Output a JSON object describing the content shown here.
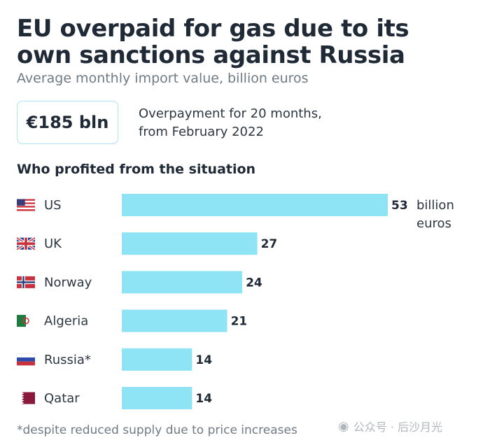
{
  "chart_data": {
    "type": "bar",
    "orientation": "horizontal",
    "title": "EU overpaid for gas due to its own sanctions against Russia",
    "subtitle": "Average monthly import value, billion euros",
    "highlight": {
      "value": "€185 bln",
      "note_line1": "Overpayment for 20 months,",
      "note_line2": "from February 2022"
    },
    "section_heading": "Who profited from the situation",
    "categories": [
      "US",
      "UK",
      "Norway",
      "Algeria",
      "Russia*",
      "Qatar"
    ],
    "values": [
      53,
      27,
      24,
      21,
      14,
      14
    ],
    "value_labels": [
      "53",
      "27",
      "24",
      "21",
      "14",
      "14"
    ],
    "unit_line1": "billion",
    "unit_line2": "euros",
    "flags": [
      "us-flag-icon",
      "uk-flag-icon",
      "norway-flag-icon",
      "algeria-flag-icon",
      "russia-flag-icon",
      "qatar-flag-icon"
    ],
    "bar_color": "#8ee3f5",
    "xlim": [
      0,
      53
    ],
    "footnote": "*despite reduced supply due to price increases"
  },
  "watermark": "公众号 · 后沙月光"
}
